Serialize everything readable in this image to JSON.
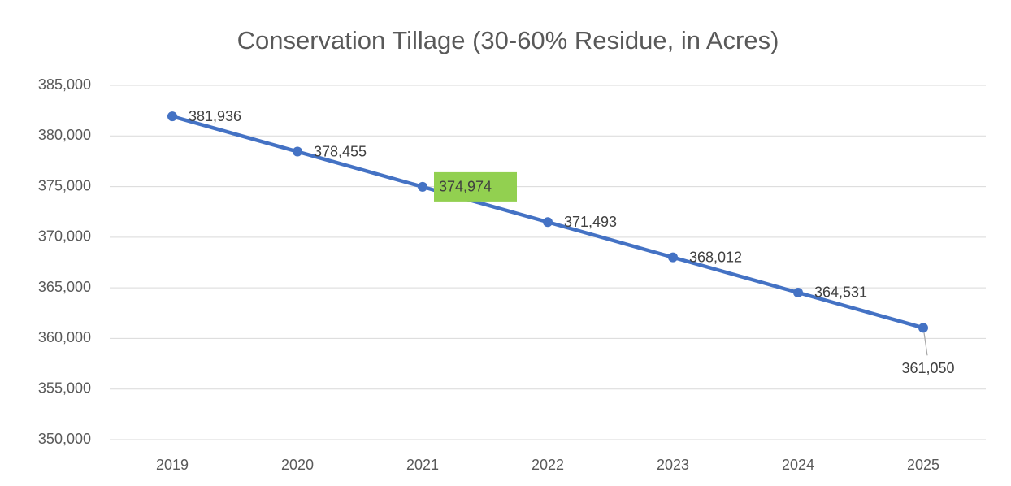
{
  "chart_data": {
    "type": "line",
    "title": "Conservation Tillage (30-60% Residue, in Acres)",
    "categories": [
      "2019",
      "2020",
      "2021",
      "2022",
      "2023",
      "2024",
      "2025"
    ],
    "series": [
      {
        "name": "Conservation Tillage",
        "color": "#4472c4",
        "values": [
          381936,
          378455,
          374974,
          371493,
          368012,
          364531,
          361050
        ],
        "value_labels": [
          "381,936",
          "378,455",
          "374,974",
          "371,493",
          "368,012",
          "364,531",
          "361,050"
        ]
      }
    ],
    "ylim": [
      350000,
      385000
    ],
    "yticks": [
      {
        "value": 350000,
        "label": "350,000"
      },
      {
        "value": 355000,
        "label": "355,000"
      },
      {
        "value": 360000,
        "label": "360,000"
      },
      {
        "value": 365000,
        "label": "365,000"
      },
      {
        "value": 370000,
        "label": "370,000"
      },
      {
        "value": 375000,
        "label": "375,000"
      },
      {
        "value": 380000,
        "label": "380,000"
      },
      {
        "value": 385000,
        "label": "385,000"
      }
    ],
    "grid": true,
    "highlight_color": "#92d050"
  }
}
